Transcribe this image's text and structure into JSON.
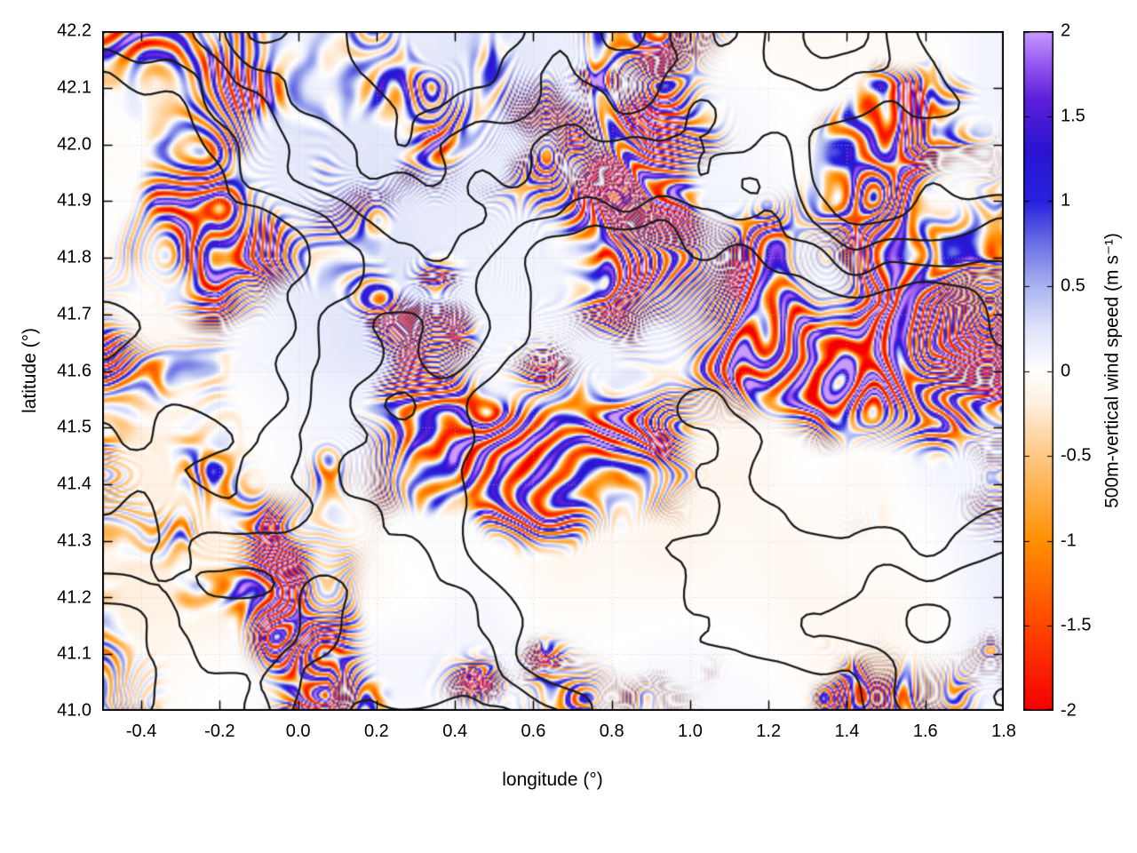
{
  "chart_data": {
    "type": "heatmap",
    "title": "",
    "xlabel": "longitude (°)",
    "ylabel": "latitude (°)",
    "xlim": [
      -0.5,
      1.8
    ],
    "ylim": [
      41.0,
      42.2
    ],
    "x_ticks": [
      "-0.4",
      "-0.2",
      "0.0",
      "0.2",
      "0.4",
      "0.6",
      "0.8",
      "1.0",
      "1.2",
      "1.4",
      "1.6",
      "1.8"
    ],
    "x_tick_values": [
      -0.4,
      -0.2,
      0.0,
      0.2,
      0.4,
      0.6,
      0.8,
      1.0,
      1.2,
      1.4,
      1.6,
      1.8
    ],
    "y_ticks": [
      "41.0",
      "41.1",
      "41.2",
      "41.3",
      "41.4",
      "41.5",
      "41.6",
      "41.7",
      "41.8",
      "41.9",
      "42.0",
      "42.1",
      "42.2"
    ],
    "y_tick_values": [
      41.0,
      41.1,
      41.2,
      41.3,
      41.4,
      41.5,
      41.6,
      41.7,
      41.8,
      41.9,
      42.0,
      42.1,
      42.2
    ],
    "grid": true,
    "grid_color": "#c0c0c0",
    "overlay": "black terrain elevation contour lines",
    "field_description": "fine filamentary gravity-wave bands of positive (blue) and negative (orange) vertical wind speed, mostly |w|<1 m/s, isolated extremes near ±2 m/s",
    "contour_color": "#1b1b1b",
    "colorbar": {
      "label": "500m-vertical wind speed (m s⁻¹)",
      "min": -2,
      "max": 2,
      "ticks": [
        "-2",
        "-1.5",
        "-1",
        "-0.5",
        "0",
        "0.5",
        "1",
        "1.5",
        "2"
      ],
      "tick_values": [
        -2,
        -1.5,
        -1,
        -0.5,
        0,
        0.5,
        1,
        1.5,
        2
      ],
      "stops": [
        {
          "v": -2.0,
          "color": "#f40000"
        },
        {
          "v": -1.5,
          "color": "#ff4600"
        },
        {
          "v": -1.0,
          "color": "#ff9000"
        },
        {
          "v": -0.5,
          "color": "#ffc882"
        },
        {
          "v": -0.2,
          "color": "#ffeedd"
        },
        {
          "v": 0.0,
          "color": "#ffffff"
        },
        {
          "v": 0.25,
          "color": "#dfe4fa"
        },
        {
          "v": 0.5,
          "color": "#a9b3f0"
        },
        {
          "v": 0.75,
          "color": "#6b70e6"
        },
        {
          "v": 1.0,
          "color": "#2722de"
        },
        {
          "v": 1.3,
          "color": "#2a14d2"
        },
        {
          "v": 1.6,
          "color": "#5c1fd8"
        },
        {
          "v": 1.8,
          "color": "#9355f0"
        },
        {
          "v": 2.0,
          "color": "#c79bff"
        }
      ]
    }
  }
}
